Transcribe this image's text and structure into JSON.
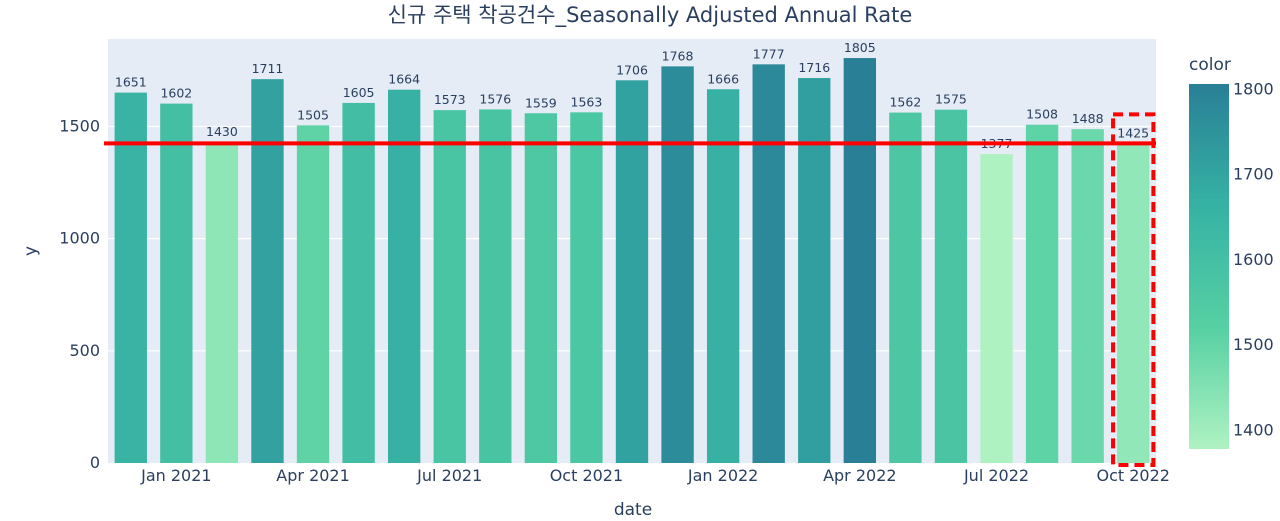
{
  "chart_data": {
    "type": "bar",
    "title": "신규 주택 착공건수_Seasonally Adjusted Annual Rate",
    "xlabel": "date",
    "ylabel": "y",
    "ylim": [
      0,
      1890
    ],
    "yticks": [
      0,
      500,
      1000,
      1500
    ],
    "categories": [
      "Dec 2020",
      "Jan 2021",
      "Feb 2021",
      "Mar 2021",
      "Apr 2021",
      "May 2021",
      "Jun 2021",
      "Jul 2021",
      "Aug 2021",
      "Sep 2021",
      "Oct 2021",
      "Nov 2021",
      "Dec 2021",
      "Jan 2022",
      "Feb 2022",
      "Mar 2022",
      "Apr 2022",
      "May 2022",
      "Jun 2022",
      "Jul 2022",
      "Aug 2022",
      "Sep 2022",
      "Oct 2022"
    ],
    "values": [
      1651,
      1602,
      1430,
      1711,
      1505,
      1605,
      1664,
      1573,
      1576,
      1559,
      1563,
      1706,
      1768,
      1666,
      1777,
      1716,
      1805,
      1562,
      1575,
      1377,
      1508,
      1488,
      1425
    ],
    "x_tick_labels": [
      {
        "label": "Jan 2021",
        "index": 1
      },
      {
        "label": "Apr 2021",
        "index": 4
      },
      {
        "label": "Jul 2021",
        "index": 7
      },
      {
        "label": "Oct 2021",
        "index": 10
      },
      {
        "label": "Jan 2022",
        "index": 13
      },
      {
        "label": "Apr 2022",
        "index": 16
      },
      {
        "label": "Jul 2022",
        "index": 19
      },
      {
        "label": "Oct 2022",
        "index": 22
      }
    ],
    "annotations": {
      "horizontal_line": {
        "y": 1425,
        "color": "#ff0000"
      },
      "highlight_box": {
        "category": "Oct 2022",
        "style": "dashed",
        "color": "#ff0000"
      }
    },
    "colorbar": {
      "title": "color",
      "range": [
        1377,
        1805
      ],
      "ticks": [
        1400,
        1500,
        1600,
        1700,
        1800
      ],
      "colorscale": [
        "#aff2c2",
        "#56d0a3",
        "#36b2a4",
        "#297f96"
      ]
    },
    "grid": true,
    "plot_background": "#e5ecf6"
  }
}
